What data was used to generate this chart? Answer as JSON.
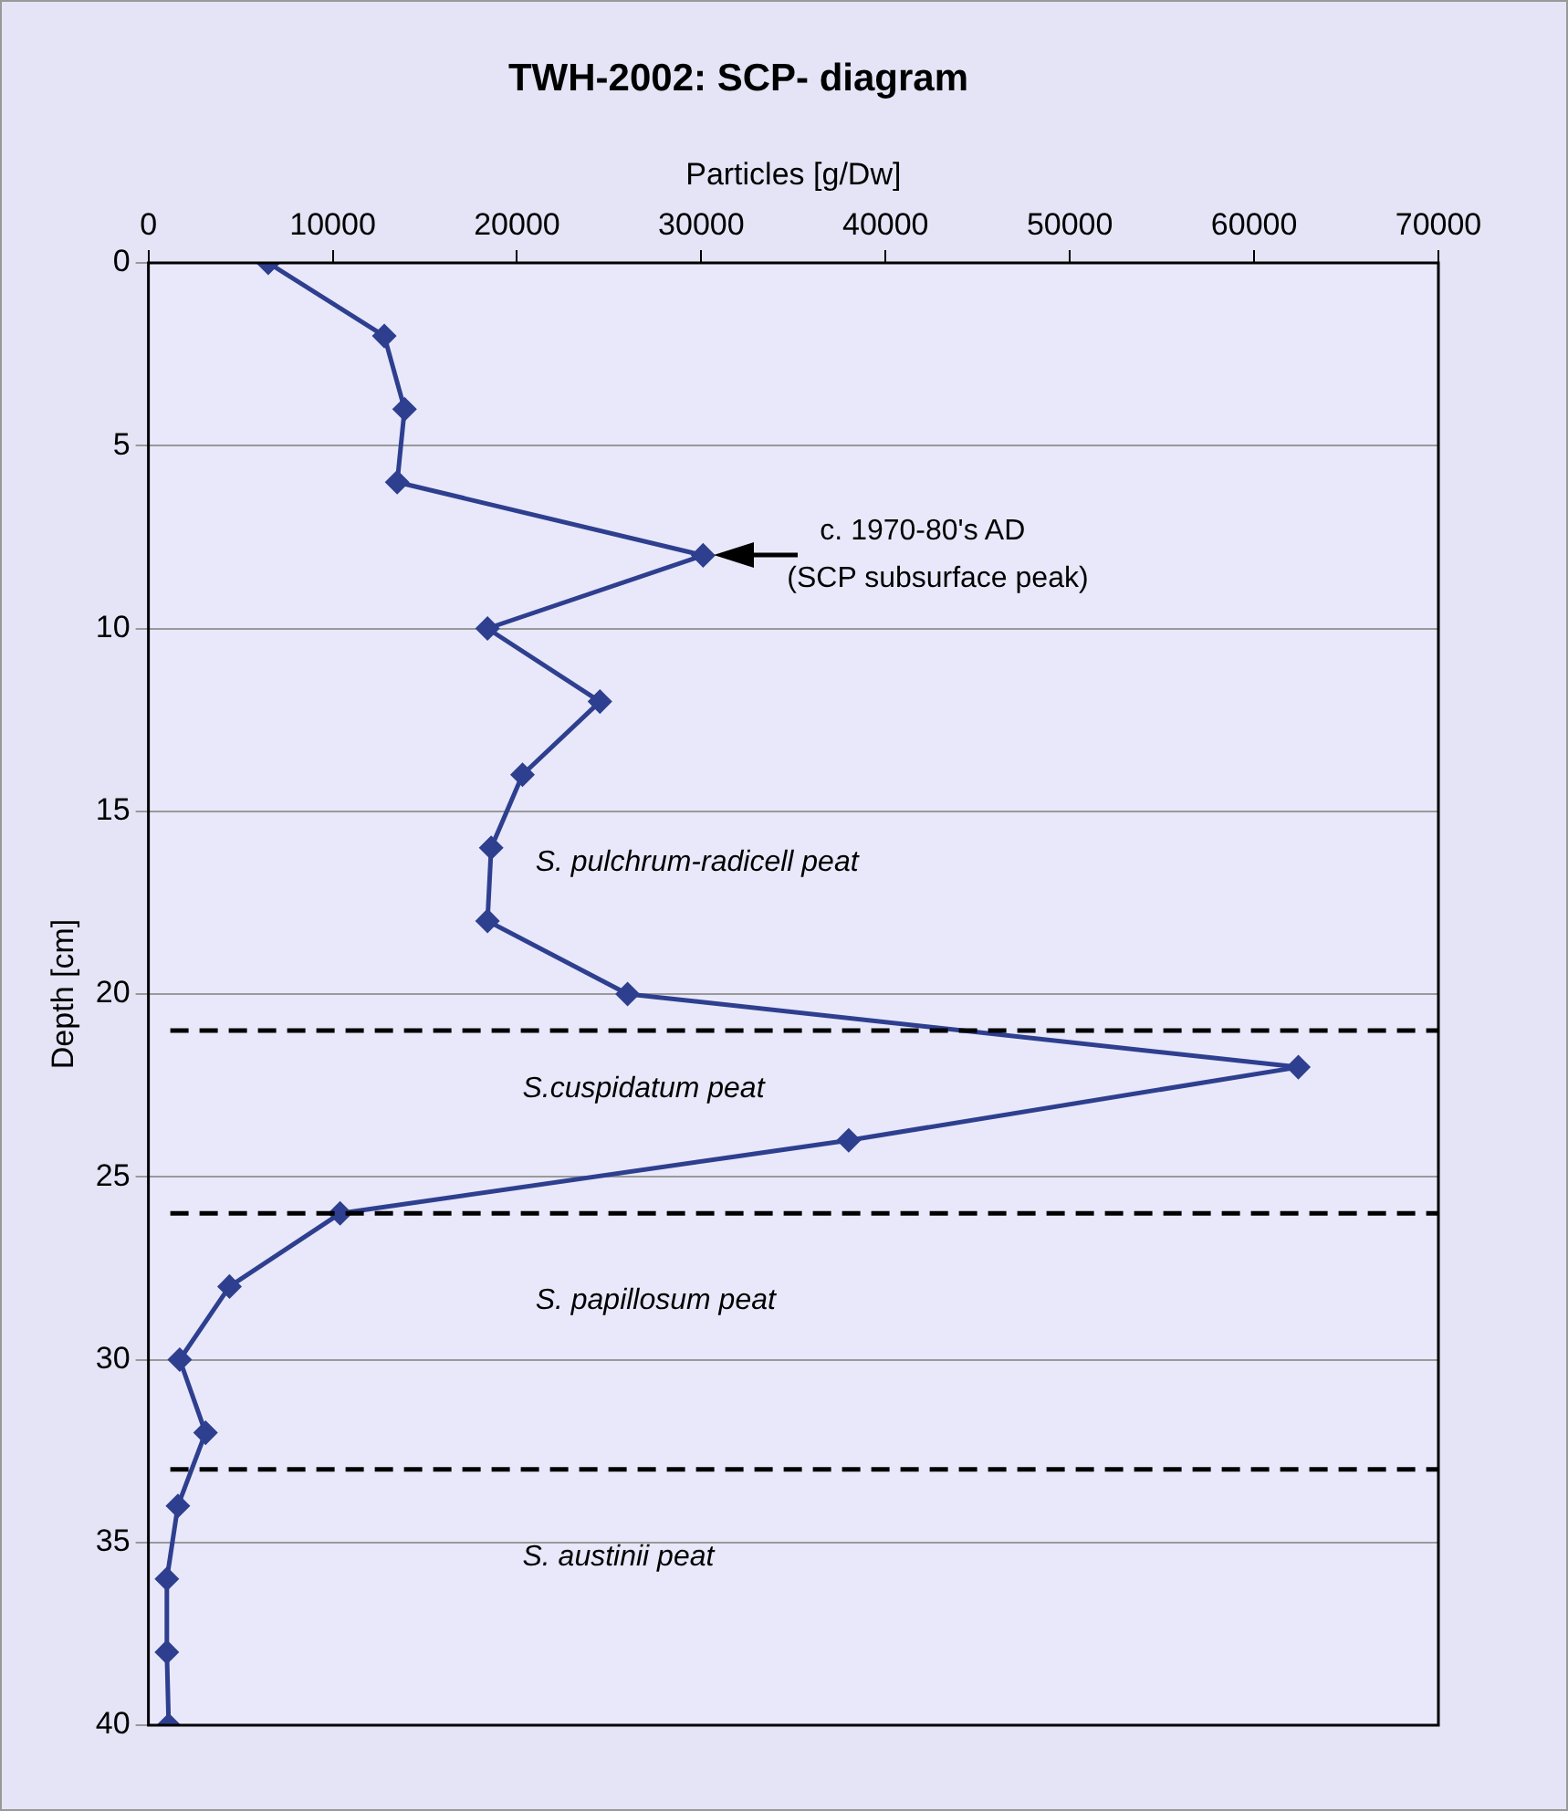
{
  "chart_data": {
    "type": "line",
    "title": "TWH-2002: SCP- diagram",
    "xlabel": "Particles [g/Dw]",
    "ylabel": "Depth [cm]",
    "orientation": "horizontal",
    "series": [
      {
        "color": "#2e3f8f",
        "values": [
          6500,
          12800,
          13900,
          13500,
          30100,
          18400,
          24500,
          20300,
          18600,
          18400,
          26000,
          62400,
          38000,
          10400,
          4400,
          1700,
          3100,
          1600,
          1000,
          1000,
          1100
        ],
        "x": [
          0,
          2,
          4,
          6,
          8,
          10,
          12,
          14,
          16,
          18,
          20,
          22,
          24,
          26,
          28,
          30,
          32,
          34,
          36,
          38,
          40
        ]
      }
    ],
    "xlim": [
      0,
      70000
    ],
    "xticks": [
      0,
      10000,
      20000,
      30000,
      40000,
      50000,
      60000,
      70000
    ],
    "ylim": [
      40,
      0
    ],
    "yticks": [
      0,
      5,
      10,
      15,
      20,
      25,
      30,
      35,
      40
    ],
    "grid": "y",
    "marker": "diamond",
    "line_style": "solid",
    "legend": false,
    "ref_lines": [
      {
        "axis": "y",
        "value": 21,
        "color": "#000000",
        "line_style": "dashed"
      },
      {
        "axis": "y",
        "value": 26,
        "color": "#000000",
        "line_style": "dashed"
      },
      {
        "axis": "y",
        "value": 33,
        "color": "#000000",
        "line_style": "dashed"
      }
    ],
    "annotations": [
      {
        "text": "c. 1970-80's AD\n(SCP subsurface peak)",
        "x": 30100,
        "y": 8
      },
      "S. pulchrum-radicell peat",
      "S.cuspidatum peat",
      "S. papillosum peat",
      "S. austinii peat"
    ]
  }
}
